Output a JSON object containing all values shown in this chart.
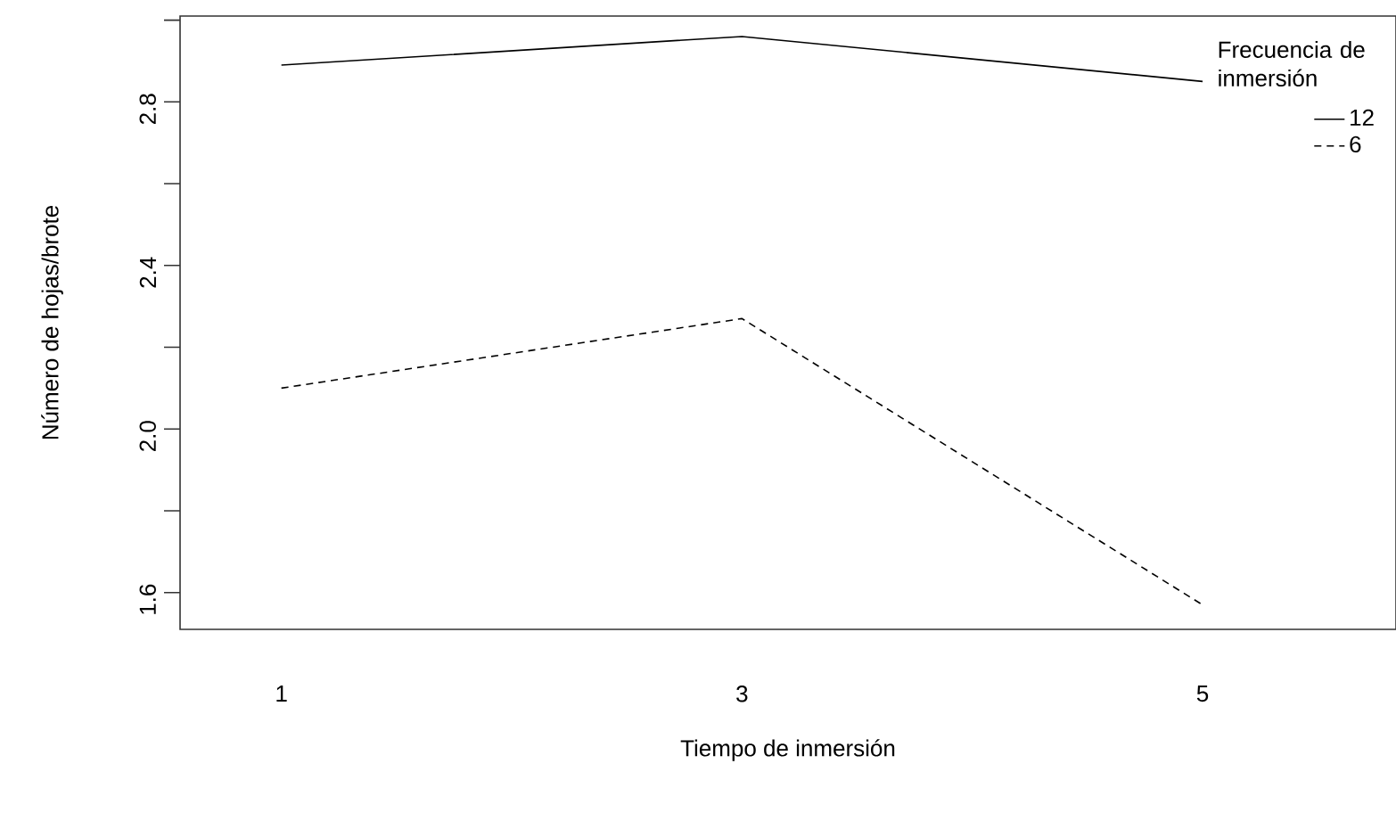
{
  "chart_data": {
    "type": "line",
    "xlabel": "Tiempo de inmersión",
    "ylabel": "Número de hojas/brote",
    "legend_title": "Frecuencia de inmersión",
    "legend": "top right",
    "categories": [
      "1",
      "3",
      "5"
    ],
    "series": [
      {
        "name": "12",
        "color": "#000000",
        "line_style": "solid",
        "values": [
          2.89,
          2.96,
          2.85
        ]
      },
      {
        "name": "6",
        "color": "#000000",
        "line_style": "dashed",
        "values": [
          2.1,
          2.27,
          1.57
        ]
      }
    ],
    "ylim": [
      1.51,
      3.01
    ],
    "yticks": [
      1.6,
      {
        "value": 1.8,
        "label": null
      },
      {
        "value": 2.0,
        "label": "2.0"
      },
      {
        "value": 2.2,
        "label": null
      },
      2.4,
      {
        "value": 2.6,
        "label": null
      },
      2.8,
      {
        "value": 3.0,
        "label": null
      }
    ],
    "marker": "none"
  }
}
